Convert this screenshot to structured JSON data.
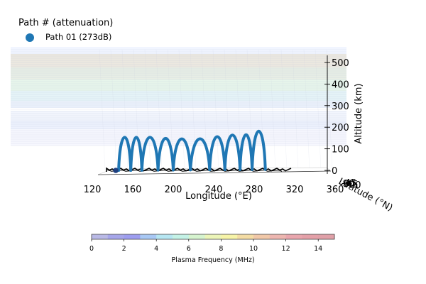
{
  "legend": {
    "title": "Path # (attenuation)",
    "entries": [
      {
        "label": "Path 01 (273dB)",
        "color": "#1f77b4"
      }
    ]
  },
  "colorbar": {
    "label": "Plasma Frequency (MHz)",
    "ticks": [
      "0",
      "2",
      "4",
      "6",
      "8",
      "10",
      "12",
      "14"
    ],
    "range": [
      0,
      15
    ],
    "colors": [
      "#b9b9e6",
      "#a6a6ea",
      "#9d9df0",
      "#a8c8f4",
      "#b6e6f2",
      "#c4f2e6",
      "#d6f4cf",
      "#ecf5b8",
      "#f7f4a8",
      "#f4dca4",
      "#f1c8a8",
      "#edb6b0",
      "#e9a6ad",
      "#e4a0a8",
      "#e0a0a8"
    ]
  },
  "chart_data": {
    "type": "line",
    "xlabel": "Longitude (°E)",
    "ylabel": "Latitude (°N)",
    "zlabel": "Altitude (km)",
    "x_ticks": [
      "120",
      "160",
      "200",
      "240",
      "280",
      "320",
      "360"
    ],
    "xlim": [
      120,
      360
    ],
    "y_ticks": [
      "-90",
      "-45",
      "0",
      "45",
      "90"
    ],
    "z_ticks": [
      "0",
      "100",
      "200",
      "300",
      "400",
      "500"
    ],
    "zlim": [
      0,
      500
    ],
    "series": [
      {
        "name": "Path 01 (273dB)",
        "color": "#1f77b4",
        "hops": [
          {
            "lon_start": 146,
            "lon_end": 158,
            "apex_alt": 145
          },
          {
            "lon_start": 158,
            "lon_end": 169,
            "apex_alt": 145
          },
          {
            "lon_start": 169,
            "lon_end": 185,
            "apex_alt": 145
          },
          {
            "lon_start": 185,
            "lon_end": 200,
            "apex_alt": 138
          },
          {
            "lon_start": 200,
            "lon_end": 217,
            "apex_alt": 135
          },
          {
            "lon_start": 217,
            "lon_end": 236,
            "apex_alt": 135
          },
          {
            "lon_start": 236,
            "lon_end": 251,
            "apex_alt": 148
          },
          {
            "lon_start": 251,
            "lon_end": 266,
            "apex_alt": 158
          },
          {
            "lon_start": 266,
            "lon_end": 278,
            "apex_alt": 160
          },
          {
            "lon_start": 278,
            "lon_end": 291,
            "apex_alt": 182
          }
        ],
        "start_marker": {
          "lon": 146,
          "alt": 0
        }
      }
    ]
  }
}
